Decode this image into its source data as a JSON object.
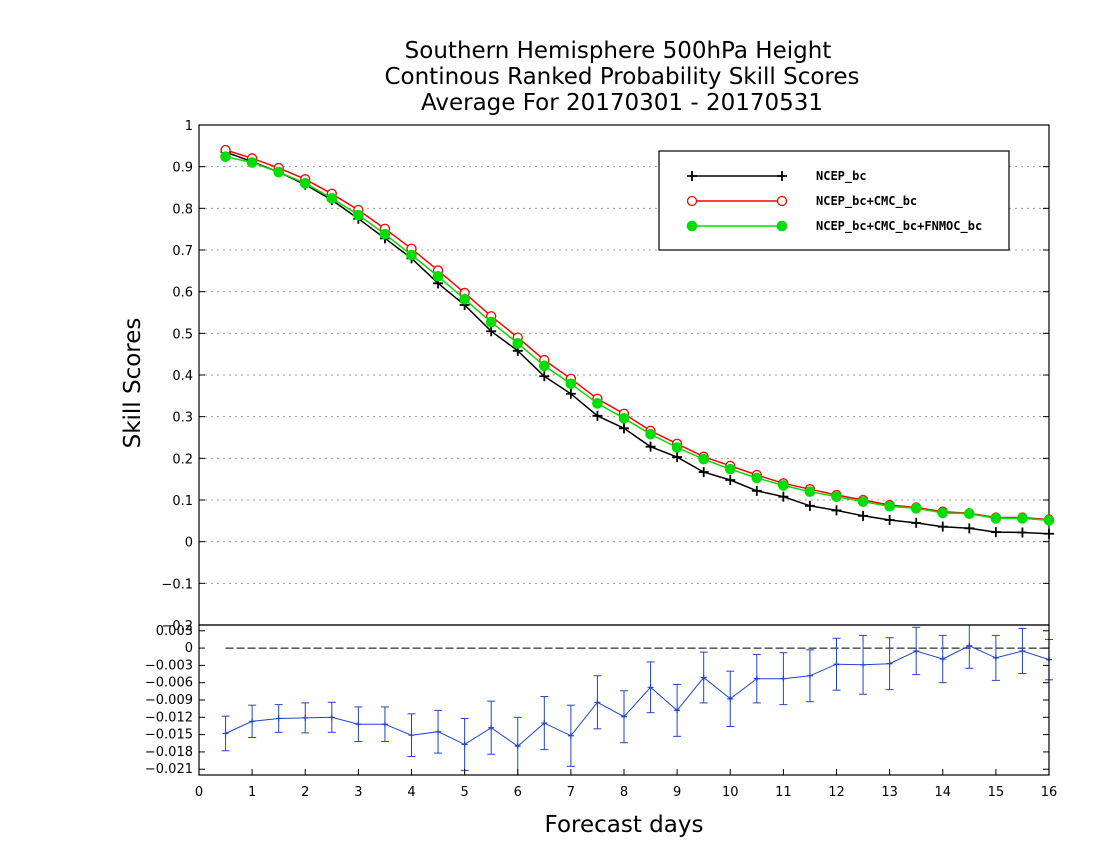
{
  "chart_data": [
    {
      "type": "line",
      "title": [
        "Southern Hemisphere 500hPa Height",
        "Continous Ranked Probability Skill Scores",
        "Average For 20170301 - 20170531"
      ],
      "ylabel": "Skill Scores",
      "xlim": [
        0,
        16
      ],
      "ylim": [
        -0.2,
        1
      ],
      "yticks": [
        "1",
        "0.9",
        "0.8",
        "0.7",
        "0.6",
        "0.5",
        "0.4",
        "0.3",
        "0.2",
        "0.1",
        "0",
        "−0.1",
        "−0.2"
      ],
      "grid": true,
      "legend_position": "top-right",
      "x": [
        0.5,
        1,
        1.5,
        2,
        2.5,
        3,
        3.5,
        4,
        4.5,
        5,
        5.5,
        6,
        6.5,
        7,
        7.5,
        8,
        8.5,
        9,
        9.5,
        10,
        10.5,
        11,
        11.5,
        12,
        12.5,
        13,
        13.5,
        14,
        14.5,
        15,
        15.5,
        16
      ],
      "series": [
        {
          "name": "NCEP_bc",
          "color": "#000000",
          "marker": "plus",
          "values": [
            0.935,
            0.912,
            0.887,
            0.857,
            0.82,
            0.775,
            0.728,
            0.68,
            0.62,
            0.568,
            0.505,
            0.458,
            0.397,
            0.355,
            0.302,
            0.272,
            0.228,
            0.203,
            0.167,
            0.148,
            0.122,
            0.108,
            0.086,
            0.075,
            0.062,
            0.052,
            0.045,
            0.036,
            0.032,
            0.023,
            0.022,
            0.019
          ]
        },
        {
          "name": "NCEP_bc+CMC_bc",
          "color": "#ff0000",
          "marker": "open-circle",
          "values": [
            0.94,
            0.92,
            0.897,
            0.87,
            0.835,
            0.796,
            0.751,
            0.703,
            0.651,
            0.597,
            0.541,
            0.49,
            0.436,
            0.391,
            0.343,
            0.307,
            0.266,
            0.235,
            0.204,
            0.182,
            0.16,
            0.14,
            0.126,
            0.112,
            0.1,
            0.088,
            0.082,
            0.072,
            0.068,
            0.058,
            0.058,
            0.053
          ]
        },
        {
          "name": "NCEP_bc+CMC_bc+FNMOC_bc",
          "color": "#00dd00",
          "marker": "filled-circle",
          "values": [
            0.924,
            0.91,
            0.887,
            0.86,
            0.824,
            0.784,
            0.738,
            0.688,
            0.637,
            0.582,
            0.527,
            0.476,
            0.422,
            0.379,
            0.332,
            0.296,
            0.258,
            0.226,
            0.198,
            0.174,
            0.153,
            0.135,
            0.12,
            0.108,
            0.096,
            0.085,
            0.08,
            0.069,
            0.067,
            0.056,
            0.056,
            0.051
          ]
        }
      ]
    },
    {
      "type": "line",
      "xlabel": "Forecast days",
      "xlim": [
        0,
        16
      ],
      "xticks": [
        "0",
        "1",
        "2",
        "3",
        "4",
        "5",
        "6",
        "7",
        "8",
        "9",
        "10",
        "11",
        "12",
        "13",
        "14",
        "15",
        "16"
      ],
      "ylim": [
        -0.022,
        0.004
      ],
      "yticks": [
        "0.003",
        "0",
        "−0.003",
        "−0.006",
        "−0.009",
        "−0.012",
        "−0.015",
        "−0.018",
        "−0.021"
      ],
      "reference_line": 0,
      "x": [
        0.5,
        1,
        1.5,
        2,
        2.5,
        3,
        3.5,
        4,
        4.5,
        5,
        5.5,
        6,
        6.5,
        7,
        7.5,
        8,
        8.5,
        9,
        9.5,
        10,
        10.5,
        11,
        11.5,
        12,
        12.5,
        13,
        13.5,
        14,
        14.5,
        15,
        15.5,
        16
      ],
      "series": [
        {
          "color": "#2244cc",
          "values": [
            -0.0148,
            -0.0127,
            -0.0122,
            -0.0121,
            -0.012,
            -0.0132,
            -0.0132,
            -0.0151,
            -0.0145,
            -0.0167,
            -0.0138,
            -0.017,
            -0.013,
            -0.0152,
            -0.0094,
            -0.0119,
            -0.0068,
            -0.0108,
            -0.0051,
            -0.0088,
            -0.0053,
            -0.0053,
            -0.0048,
            -0.0028,
            -0.0029,
            -0.0027,
            -0.0005,
            -0.0019,
            0.0004,
            -0.0017,
            -0.0005,
            -0.002
          ],
          "error_low": [
            -0.0178,
            -0.0155,
            -0.0146,
            -0.0147,
            -0.0146,
            -0.0162,
            -0.0162,
            -0.0188,
            -0.0182,
            -0.0212,
            -0.0184,
            -0.022,
            -0.0176,
            -0.0205,
            -0.014,
            -0.0164,
            -0.0112,
            -0.0153,
            -0.0095,
            -0.0136,
            -0.0095,
            -0.0098,
            -0.0093,
            -0.0073,
            -0.008,
            -0.0072,
            -0.0046,
            -0.006,
            -0.0035,
            -0.0056,
            -0.0044,
            -0.0055
          ],
          "error_high": [
            -0.0118,
            -0.0099,
            -0.0098,
            -0.0095,
            -0.0094,
            -0.0102,
            -0.0102,
            -0.0114,
            -0.0108,
            -0.0122,
            -0.0092,
            -0.012,
            -0.0084,
            -0.0099,
            -0.0048,
            -0.0074,
            -0.0024,
            -0.0063,
            -0.0007,
            -0.004,
            -0.0011,
            -0.0008,
            -0.0003,
            0.0017,
            0.0022,
            0.0018,
            0.0036,
            0.0022,
            0.0043,
            0.0022,
            0.0034,
            0.0015
          ]
        }
      ]
    }
  ]
}
